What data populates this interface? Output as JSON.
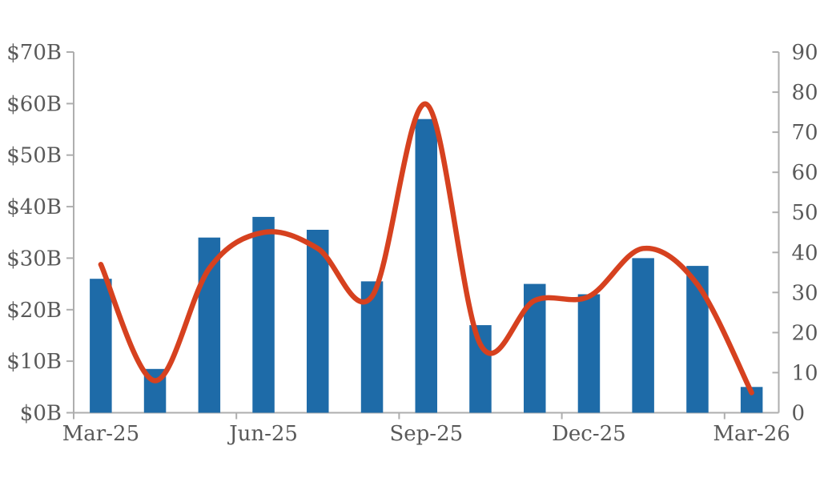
{
  "chart_data": {
    "type": "combo",
    "title": "",
    "categories": [
      "Mar-25",
      "Apr-25",
      "May-25",
      "Jun-25",
      "Jul-25",
      "Aug-25",
      "Sep-25",
      "Oct-25",
      "Nov-25",
      "Dec-25",
      "Jan-26",
      "Feb-26",
      "Mar-26"
    ],
    "x_axis": {
      "visible_tick_labels": [
        "Mar-25",
        "Jun-25",
        "Sep-25",
        "Dec-25",
        "Mar-26"
      ],
      "labeled_category_indexes": [
        0,
        3,
        6,
        9,
        12
      ]
    },
    "left_axis": {
      "min": 0,
      "max": 70,
      "step": 10,
      "tick_labels": [
        "$0B",
        "$10B",
        "$20B",
        "$30B",
        "$40B",
        "$50B",
        "$60B",
        "$70B"
      ]
    },
    "right_axis": {
      "min": 0,
      "max": 90,
      "step": 10,
      "tick_labels": [
        "0",
        "10",
        "20",
        "30",
        "40",
        "50",
        "60",
        "70",
        "80",
        "90"
      ]
    },
    "series": [
      {
        "name": "bar-series",
        "type": "bar",
        "axis": "left",
        "color": "#1e6ba8",
        "values": [
          26,
          8.5,
          34,
          38,
          35.5,
          25.5,
          57,
          17,
          25,
          23,
          30,
          28.5,
          5
        ]
      },
      {
        "name": "line-series",
        "type": "line",
        "axis": "right",
        "color": "#d6411f",
        "values": [
          37,
          8,
          36,
          45,
          41,
          29,
          77,
          17,
          28,
          29,
          41,
          32,
          5
        ]
      }
    ],
    "grid": false,
    "legend": false
  },
  "colors": {
    "bar": "#1e6ba8",
    "line": "#d6411f",
    "axis_line": "#aeaeae",
    "tick_text": "#595959",
    "background": "#ffffff"
  }
}
